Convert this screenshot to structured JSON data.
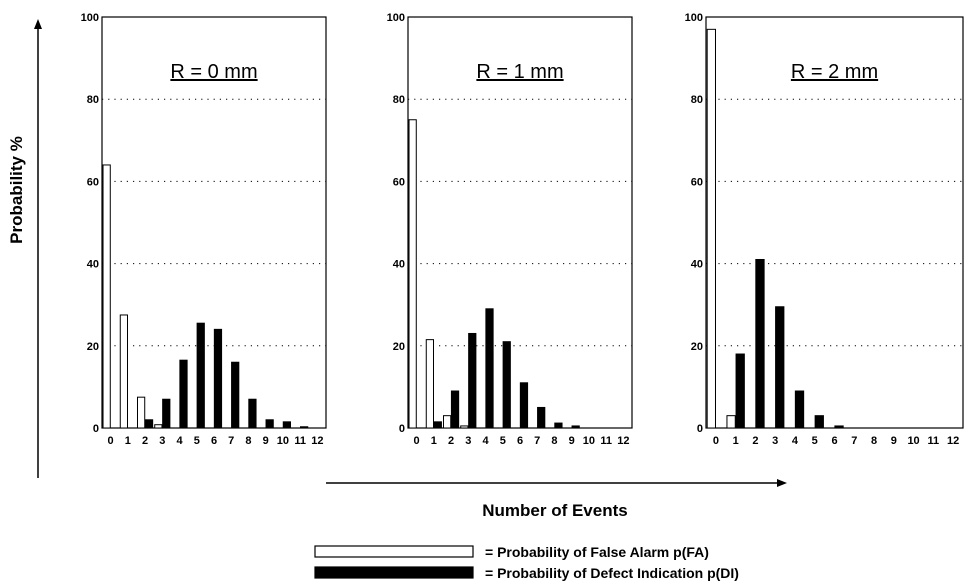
{
  "chart_data": {
    "type": "bar",
    "ylabel": "Probability %",
    "xlabel": "Number of Events",
    "ylim": [
      0,
      100
    ],
    "yticks": [
      "0",
      "20",
      "40",
      "60",
      "80",
      "100"
    ],
    "categories": [
      "0",
      "1",
      "2",
      "3",
      "4",
      "5",
      "6",
      "7",
      "8",
      "9",
      "10",
      "11",
      "12"
    ],
    "grid": "horizontal-dotted",
    "legend": {
      "placement": "bottom-center",
      "entries": [
        {
          "key": "fa",
          "label": "= Probability of False Alarm p(FA)",
          "fill": "#ffffff"
        },
        {
          "key": "di",
          "label": "= Probability of Defect Indication p(DI)",
          "fill": "#000000"
        }
      ]
    },
    "panels": [
      {
        "title": "R = 0 mm",
        "series": [
          {
            "key": "fa",
            "values": [
              64,
              27.5,
              7.5,
              0.8,
              0,
              0,
              0,
              0,
              0,
              0,
              0,
              0,
              0
            ]
          },
          {
            "key": "di",
            "values": [
              0,
              0,
              2,
              7,
              16.5,
              25.5,
              24,
              16,
              7,
              2,
              1.5,
              0.3,
              0
            ]
          }
        ]
      },
      {
        "title": "R = 1 mm",
        "series": [
          {
            "key": "fa",
            "values": [
              75,
              21.5,
              3,
              0.5,
              0,
              0,
              0,
              0,
              0,
              0,
              0,
              0,
              0
            ]
          },
          {
            "key": "di",
            "values": [
              0,
              1.5,
              9,
              23,
              29,
              21,
              11,
              5,
              1.2,
              0.5,
              0,
              0,
              0
            ]
          }
        ]
      },
      {
        "title": "R = 2 mm",
        "series": [
          {
            "key": "fa",
            "values": [
              97,
              3,
              0,
              0,
              0,
              0,
              0,
              0,
              0,
              0,
              0,
              0,
              0
            ]
          },
          {
            "key": "di",
            "values": [
              0,
              18,
              41,
              29.5,
              9,
              3,
              0.5,
              0,
              0,
              0,
              0,
              0,
              0
            ]
          }
        ]
      }
    ]
  }
}
